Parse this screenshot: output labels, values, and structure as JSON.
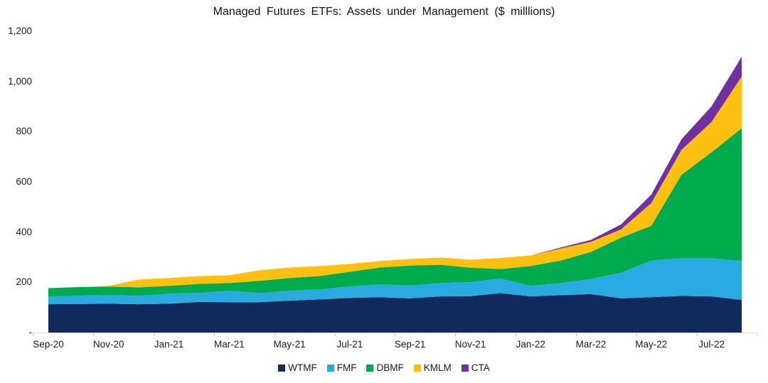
{
  "chart_data": {
    "type": "area",
    "stacked": true,
    "title": "Managed Futures ETFs: Assets under Management ($ milllions)",
    "xlabel": "",
    "ylabel": "",
    "ylim": [
      0,
      1200
    ],
    "grid": false,
    "legend_position": "bottom",
    "axis_color": "#D9D9D9",
    "tick_color": "#BFBFBF",
    "categories": [
      "Sep-20",
      "Oct-20",
      "Nov-20",
      "Dec-20",
      "Jan-21",
      "Feb-21",
      "Mar-21",
      "Apr-21",
      "May-21",
      "Jun-21",
      "Jul-21",
      "Aug-21",
      "Sep-21",
      "Oct-21",
      "Nov-21",
      "Dec-21",
      "Jan-22",
      "Feb-22",
      "Mar-22",
      "Apr-22",
      "May-22",
      "Jun-22",
      "Jul-22",
      "Aug-22"
    ],
    "x_tick_labels": [
      "Sep-20",
      "Nov-20",
      "Jan-21",
      "Mar-21",
      "May-21",
      "Jul-21",
      "Sep-21",
      "Nov-21",
      "Jan-22",
      "Mar-22",
      "May-22",
      "Jul-22"
    ],
    "y_ticks": [
      {
        "label": "-",
        "value": 0
      },
      {
        "label": "200",
        "value": 200
      },
      {
        "label": "400",
        "value": 400
      },
      {
        "label": "600",
        "value": 600
      },
      {
        "label": "800",
        "value": 800
      },
      {
        "label": "1,000",
        "value": 1000
      },
      {
        "label": "1,200",
        "value": 1200
      }
    ],
    "series": [
      {
        "name": "WTMF",
        "color": "#112A5E",
        "values": [
          113,
          114,
          115,
          113,
          115,
          122,
          121,
          121,
          127,
          132,
          138,
          141,
          136,
          144,
          145,
          157,
          144,
          149,
          153,
          136,
          141,
          146,
          144,
          130
        ]
      },
      {
        "name": "FMF",
        "color": "#29ABE2",
        "values": [
          31,
          33,
          34,
          33,
          40,
          36,
          45,
          36,
          39,
          40,
          45,
          51,
          51,
          53,
          56,
          58,
          42,
          48,
          60,
          102,
          146,
          150,
          152,
          155
        ]
      },
      {
        "name": "DBMF",
        "color": "#00AB4E",
        "values": [
          33,
          34,
          34,
          34,
          31,
          36,
          31,
          49,
          51,
          53,
          59,
          67,
          80,
          73,
          57,
          38,
          79,
          90,
          108,
          140,
          138,
          332,
          422,
          529
        ]
      },
      {
        "name": "KMLM",
        "color": "#FDC010",
        "values": [
          0,
          0,
          3,
          31,
          31,
          31,
          31,
          42,
          42,
          40,
          31,
          26,
          26,
          29,
          32,
          44,
          42,
          48,
          40,
          33,
          90,
          99,
          121,
          206
        ]
      },
      {
        "name": "CTA",
        "color": "#7030A0",
        "values": [
          0,
          0,
          0,
          0,
          0,
          0,
          0,
          0,
          0,
          0,
          0,
          0,
          0,
          0,
          0,
          0,
          0,
          4,
          8,
          20,
          34,
          42,
          62,
          79
        ]
      }
    ]
  }
}
